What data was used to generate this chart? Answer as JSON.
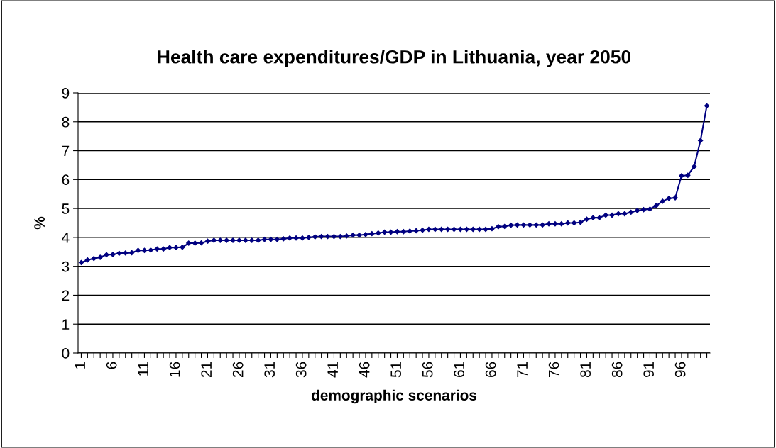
{
  "chart_data": {
    "type": "line",
    "title": "Health care expenditures/GDP in Lithuania, year 2050",
    "xlabel": "demographic scenarios",
    "ylabel": "%",
    "categories": [
      "1",
      null,
      null,
      null,
      null,
      "6",
      null,
      null,
      null,
      null,
      "11",
      null,
      null,
      null,
      null,
      "16",
      null,
      null,
      null,
      null,
      "21",
      null,
      null,
      null,
      null,
      "26",
      null,
      null,
      null,
      null,
      "31",
      null,
      null,
      null,
      null,
      "36",
      null,
      null,
      null,
      null,
      "41",
      null,
      null,
      null,
      null,
      "46",
      null,
      null,
      null,
      null,
      "51",
      null,
      null,
      null,
      null,
      "56",
      null,
      null,
      null,
      null,
      "61",
      null,
      null,
      null,
      null,
      "66",
      null,
      null,
      null,
      null,
      "71",
      null,
      null,
      null,
      null,
      "76",
      null,
      null,
      null,
      null,
      "81",
      null,
      null,
      null,
      null,
      "86",
      null,
      null,
      null,
      null,
      "91",
      null,
      null,
      null,
      null,
      "96",
      null,
      null,
      null,
      null
    ],
    "series": [
      {
        "color": "#000080",
        "values": [
          3.13,
          3.22,
          3.27,
          3.31,
          3.4,
          3.41,
          3.45,
          3.46,
          3.47,
          3.55,
          3.55,
          3.56,
          3.6,
          3.6,
          3.65,
          3.65,
          3.66,
          3.8,
          3.8,
          3.81,
          3.87,
          3.9,
          3.9,
          3.9,
          3.9,
          3.9,
          3.9,
          3.9,
          3.9,
          3.93,
          3.93,
          3.93,
          3.95,
          3.98,
          3.98,
          3.98,
          4.0,
          4.02,
          4.03,
          4.03,
          4.03,
          4.03,
          4.05,
          4.08,
          4.08,
          4.1,
          4.13,
          4.15,
          4.18,
          4.18,
          4.2,
          4.2,
          4.22,
          4.23,
          4.25,
          4.28,
          4.28,
          4.28,
          4.28,
          4.28,
          4.28,
          4.28,
          4.28,
          4.28,
          4.28,
          4.3,
          4.37,
          4.38,
          4.42,
          4.43,
          4.43,
          4.43,
          4.43,
          4.43,
          4.47,
          4.47,
          4.47,
          4.5,
          4.5,
          4.52,
          4.63,
          4.68,
          4.68,
          4.77,
          4.77,
          4.82,
          4.82,
          4.87,
          4.93,
          4.96,
          4.98,
          5.1,
          5.25,
          5.35,
          5.37,
          6.13,
          6.15,
          6.45,
          7.35,
          8.55
        ]
      }
    ],
    "ylim": [
      0,
      9
    ],
    "yticks": [
      0,
      1,
      2,
      3,
      4,
      5,
      6,
      7,
      8,
      9
    ],
    "grid": "y",
    "marker": "diamond",
    "line_style": "solid",
    "legend": false
  }
}
